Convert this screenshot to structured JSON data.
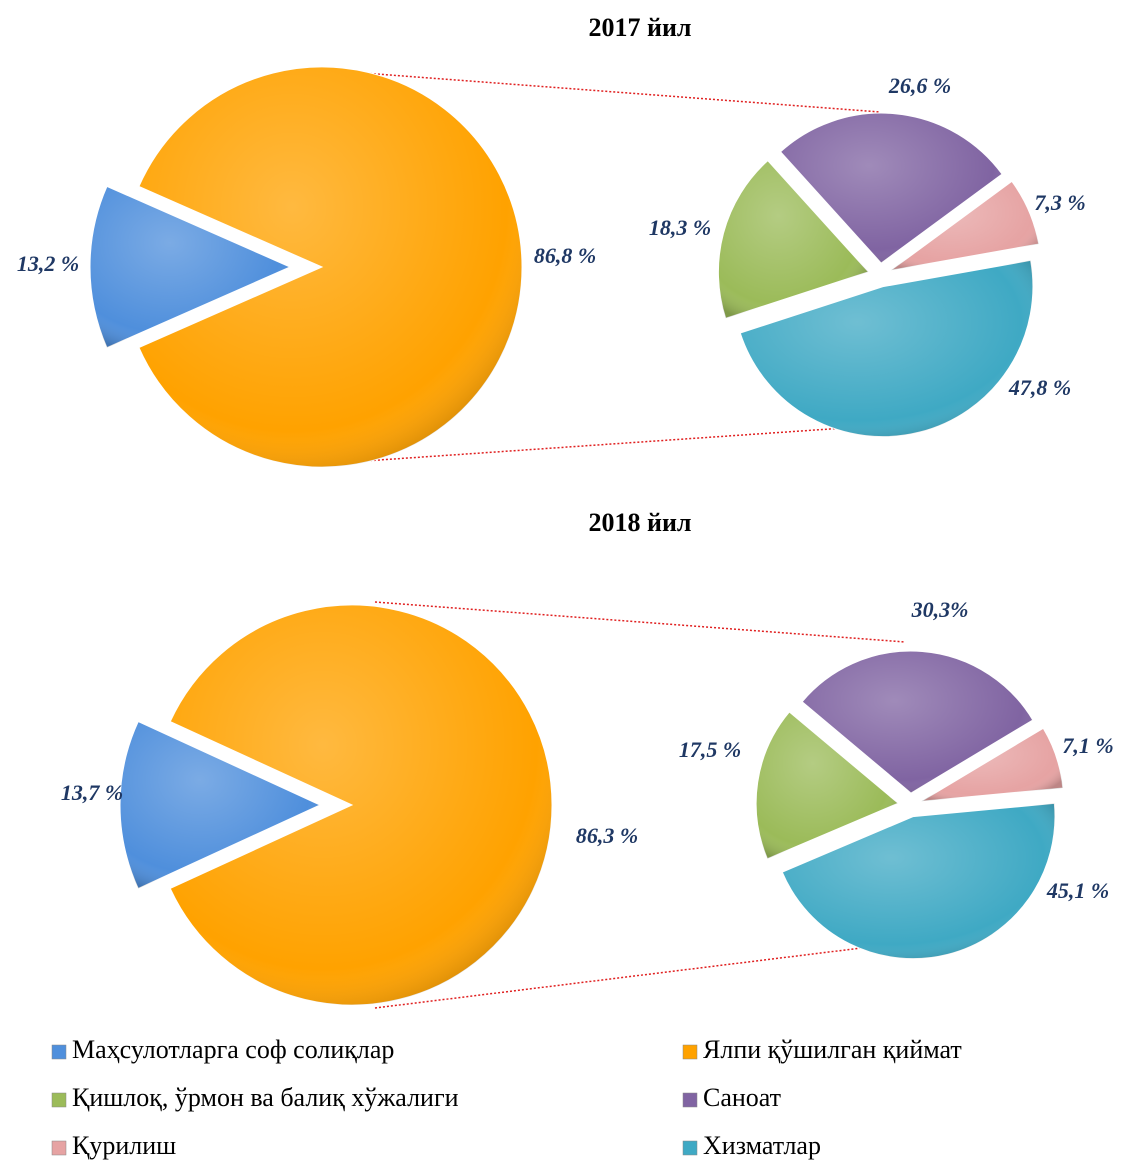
{
  "chart_data": [
    {
      "type": "pie-of-pie",
      "title": "2017 йил",
      "categories": [
        "Маҳсулотларга соф солиқлар",
        "Ялпи қўшилган қиймат"
      ],
      "values": [
        13.2,
        86.8
      ],
      "value_labels": [
        "13,2 %",
        "86,8 %"
      ],
      "colors": [
        "#4f8fdc",
        "#ffa200"
      ],
      "sub_categories": [
        "Қишлоқ, ўрмон ва балиқ хўжалиги",
        "Саноат",
        "Қурилиш",
        "Хизматлар"
      ],
      "sub_values": [
        18.3,
        26.6,
        7.3,
        47.8
      ],
      "sub_value_labels": [
        "18,3 %",
        "26,6 %",
        "7,3 %",
        "47,8 %"
      ],
      "sub_colors": [
        "#9bbb59",
        "#8064a2",
        "#e6a3a3",
        "#3fa9c4"
      ]
    },
    {
      "type": "pie-of-pie",
      "title": "2018 йил",
      "categories": [
        "Маҳсулотларга соф солиқлар",
        "Ялпи қўшилган қиймат"
      ],
      "values": [
        13.7,
        86.3
      ],
      "value_labels": [
        "13,7 %",
        "86,3 %"
      ],
      "colors": [
        "#4f8fdc",
        "#ffa200"
      ],
      "sub_categories": [
        "Қишлоқ, ўрмон ва балиқ хўжалиги",
        "Саноат",
        "Қурилиш",
        "Хизматлар"
      ],
      "sub_values": [
        17.5,
        30.3,
        7.1,
        45.1
      ],
      "sub_value_labels": [
        "17,5 %",
        "30,3%",
        "7,1 %",
        "45,1 %"
      ],
      "sub_colors": [
        "#9bbb59",
        "#8064a2",
        "#e6a3a3",
        "#3fa9c4"
      ]
    }
  ]
}
